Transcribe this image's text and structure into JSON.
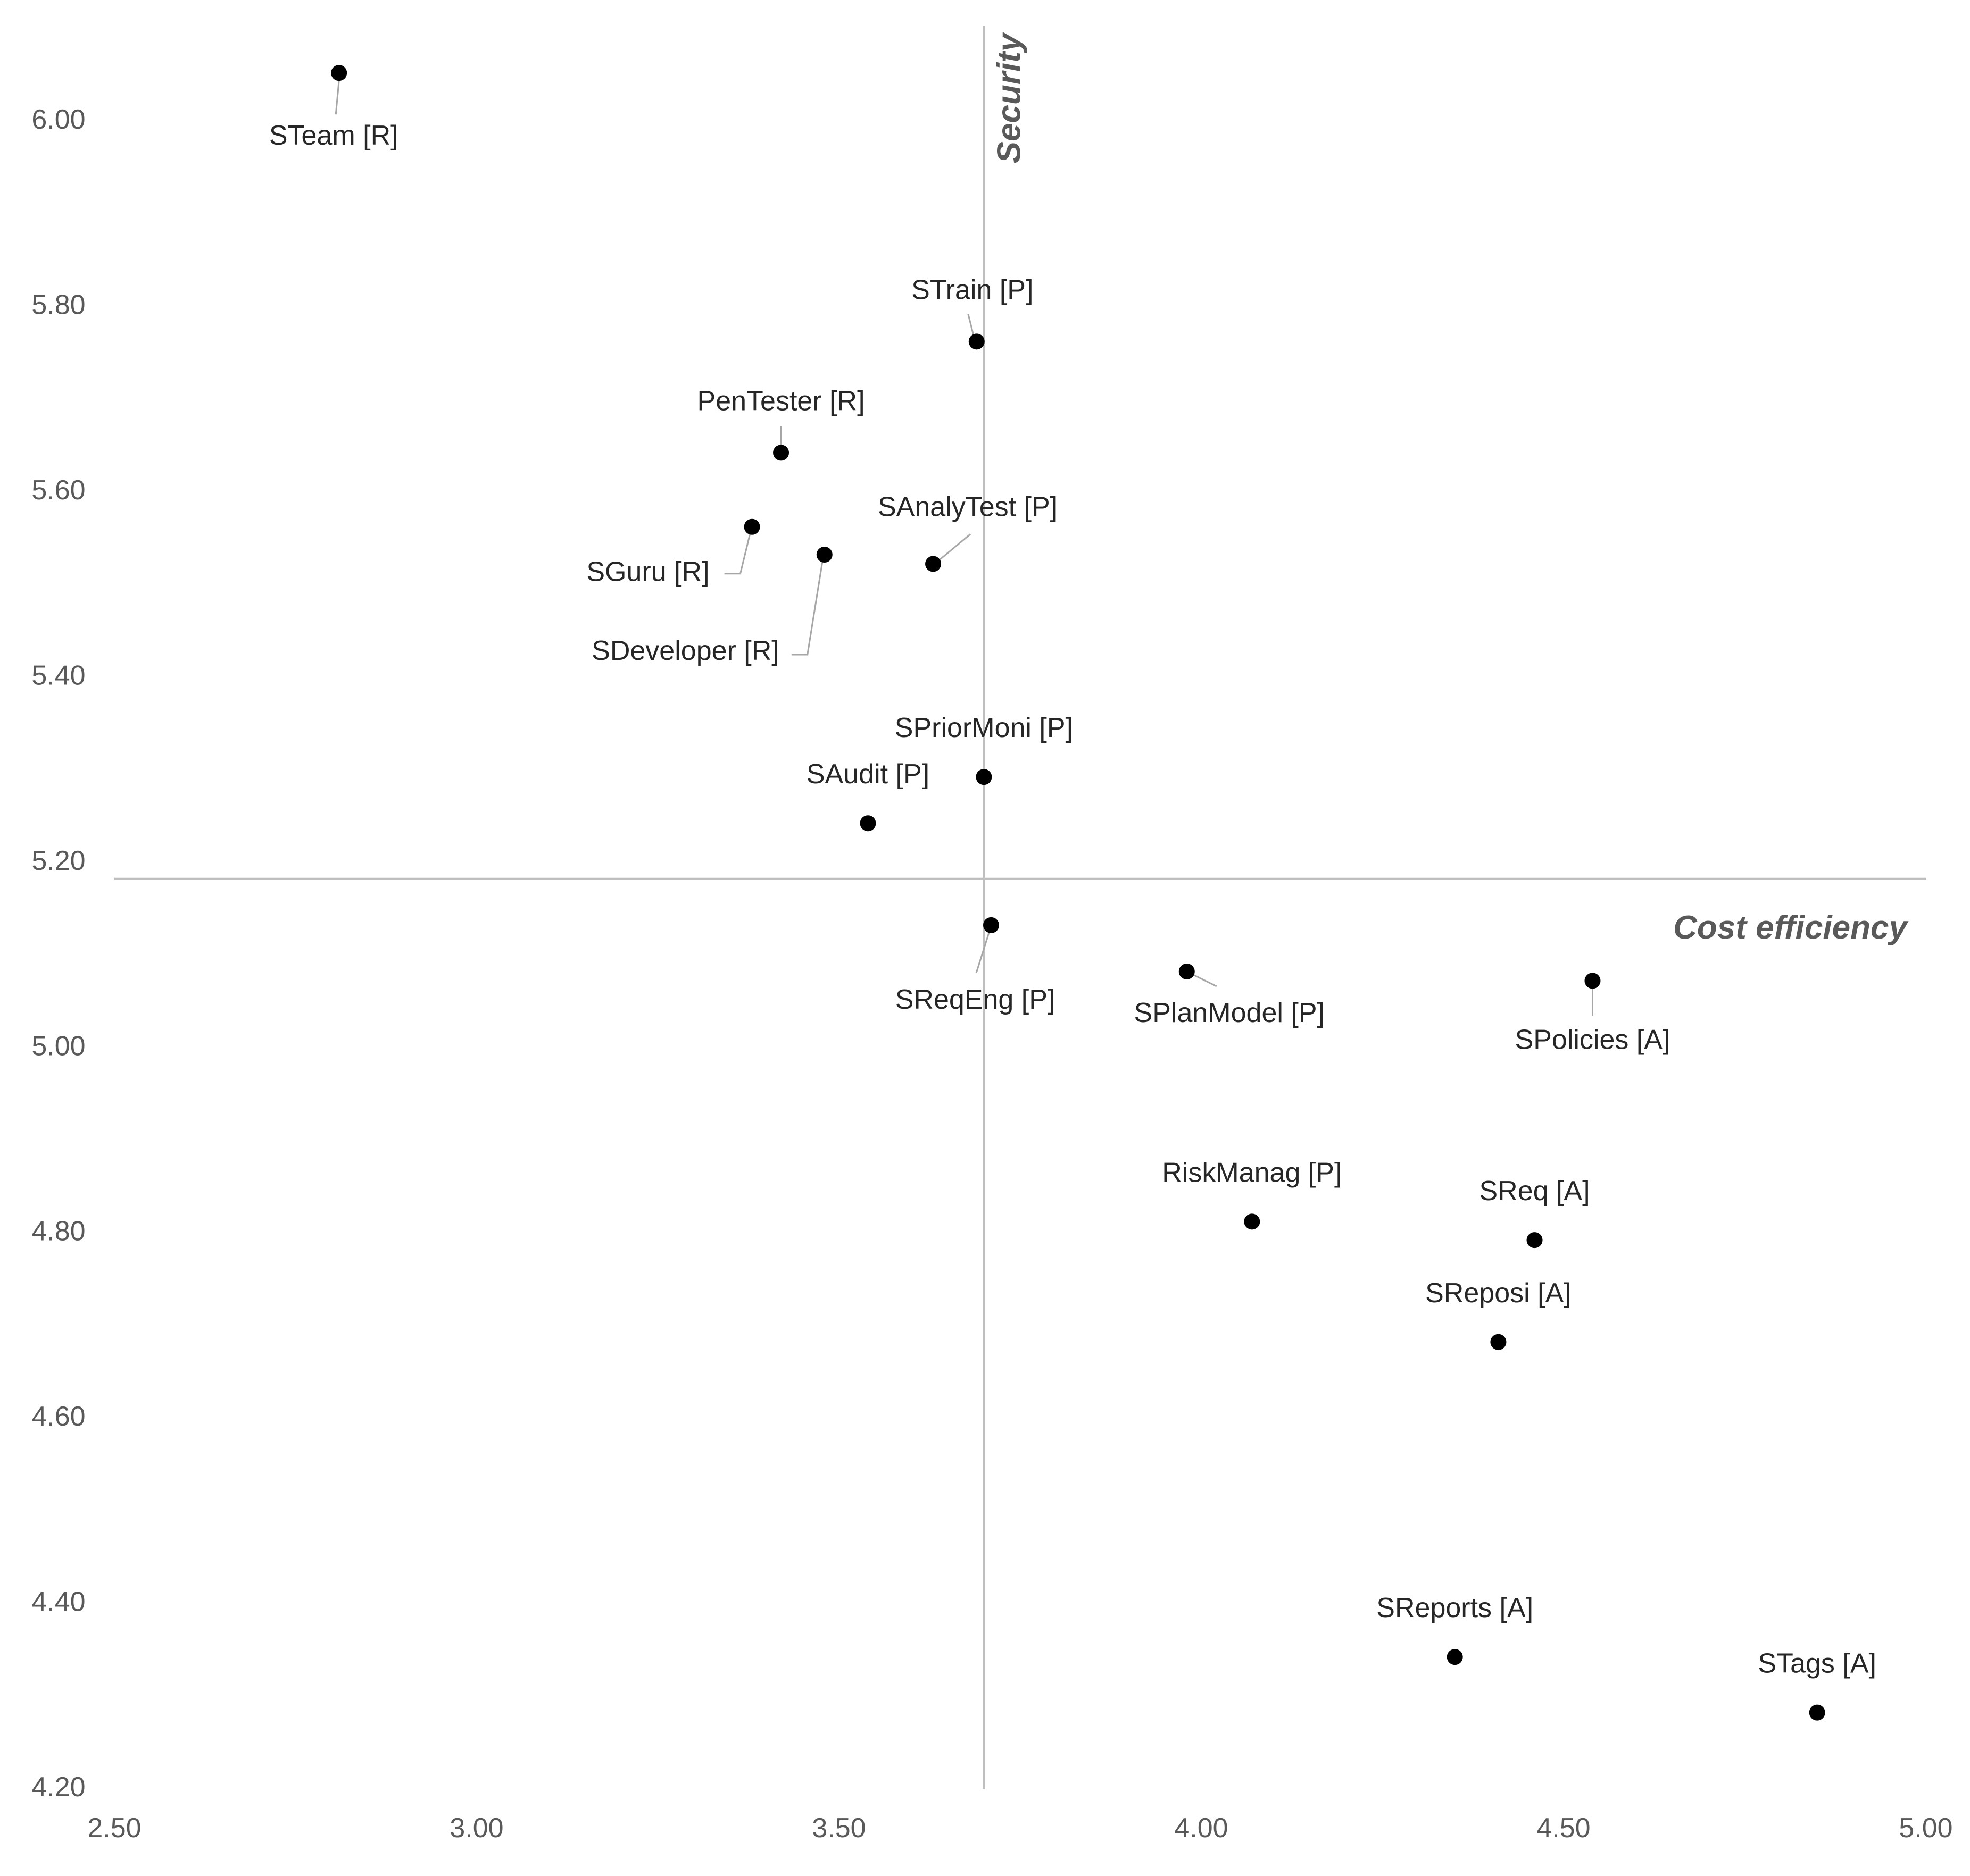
{
  "chart_data": {
    "type": "scatter",
    "title": "",
    "xlabel": "Cost efficiency",
    "ylabel": "Security",
    "xlim": [
      2.5,
      5.0
    ],
    "ylim": [
      4.2,
      6.1
    ],
    "x_ticks": [
      "2.50",
      "3.00",
      "3.50",
      "4.00",
      "4.50",
      "5.00"
    ],
    "y_ticks": [
      "4.20",
      "4.40",
      "4.60",
      "4.80",
      "5.00",
      "5.20",
      "5.40",
      "5.60",
      "5.80",
      "6.00"
    ],
    "crossing": {
      "x": 3.7,
      "y": 5.18
    },
    "grid": false,
    "legend": "none",
    "marker_color": "#000000",
    "points": [
      {
        "label": "STeam [R]",
        "x": 2.81,
        "y": 6.05
      },
      {
        "label": "STrain [P]",
        "x": 3.69,
        "y": 5.76
      },
      {
        "label": "PenTester [R]",
        "x": 3.42,
        "y": 5.64
      },
      {
        "label": "SGuru [R]",
        "x": 3.38,
        "y": 5.56
      },
      {
        "label": "SDeveloper [R]",
        "x": 3.48,
        "y": 5.53
      },
      {
        "label": "SAnalyTest [P]",
        "x": 3.63,
        "y": 5.52
      },
      {
        "label": "SPriorMoni [P]",
        "x": 3.7,
        "y": 5.29
      },
      {
        "label": "SAudit [P]",
        "x": 3.54,
        "y": 5.24
      },
      {
        "label": "SReqEng [P]",
        "x": 3.71,
        "y": 5.13
      },
      {
        "label": "SPlanModel [P]",
        "x": 3.98,
        "y": 5.08
      },
      {
        "label": "SPolicies [A]",
        "x": 4.54,
        "y": 5.07
      },
      {
        "label": "RiskManag [P]",
        "x": 4.07,
        "y": 4.81
      },
      {
        "label": "SReq [A]",
        "x": 4.46,
        "y": 4.79
      },
      {
        "label": "SReposi [A]",
        "x": 4.41,
        "y": 4.68
      },
      {
        "label": "SReports [A]",
        "x": 4.35,
        "y": 4.34
      },
      {
        "label": "STags [A]",
        "x": 4.85,
        "y": 4.28
      }
    ]
  }
}
